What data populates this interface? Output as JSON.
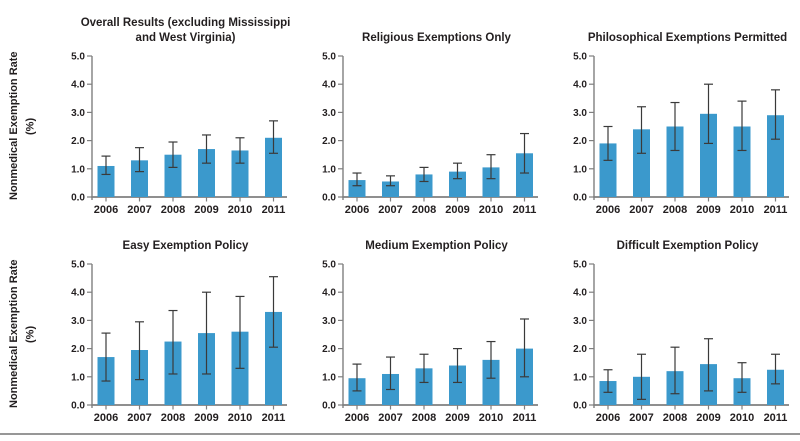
{
  "figure": {
    "y_axis_label": "Nonmedical Exemption Rate\n(%)"
  },
  "style": {
    "bar_color": "#3b99cc",
    "axis_color": "#7f7f7f",
    "error_color": "#3a3a3a",
    "text_color": "#231f20",
    "rule_color": "#979797",
    "background": "#ffffff"
  },
  "chart_data": [
    {
      "type": "bar",
      "title": "Overall Results (excluding Mississippi\nand West Virginia)",
      "categories": [
        "2006",
        "2007",
        "2008",
        "2009",
        "2010",
        "2011"
      ],
      "values": [
        1.1,
        1.3,
        1.5,
        1.7,
        1.65,
        2.1
      ],
      "error_low": [
        0.8,
        0.9,
        1.05,
        1.2,
        1.2,
        1.55
      ],
      "error_high": [
        1.45,
        1.75,
        1.95,
        2.2,
        2.1,
        2.7
      ],
      "xlabel": "",
      "ylabel": "Nonmedical Exemption Rate (%)",
      "ylim": [
        0,
        5
      ],
      "yticks": [
        "0.0",
        "1.0",
        "2.0",
        "3.0",
        "4.0",
        "5.0"
      ],
      "grid": false,
      "legend": "none"
    },
    {
      "type": "bar",
      "title": "Religious Exemptions Only",
      "categories": [
        "2006",
        "2007",
        "2008",
        "2009",
        "2010",
        "2011"
      ],
      "values": [
        0.6,
        0.55,
        0.8,
        0.9,
        1.05,
        1.55
      ],
      "error_low": [
        0.4,
        0.4,
        0.55,
        0.65,
        0.65,
        0.85
      ],
      "error_high": [
        0.85,
        0.75,
        1.05,
        1.2,
        1.5,
        2.25
      ],
      "xlabel": "",
      "ylabel": "Nonmedical Exemption Rate (%)",
      "ylim": [
        0,
        5
      ],
      "yticks": [
        "0.0",
        "1.0",
        "2.0",
        "3.0",
        "4.0",
        "5.0"
      ],
      "grid": false,
      "legend": "none"
    },
    {
      "type": "bar",
      "title": "Philosophical Exemptions Permitted",
      "categories": [
        "2006",
        "2007",
        "2008",
        "2009",
        "2010",
        "2011"
      ],
      "values": [
        1.9,
        2.4,
        2.5,
        2.95,
        2.5,
        2.9
      ],
      "error_low": [
        1.3,
        1.55,
        1.65,
        1.9,
        1.65,
        2.05
      ],
      "error_high": [
        2.5,
        3.2,
        3.35,
        4.0,
        3.4,
        3.8
      ],
      "xlabel": "",
      "ylabel": "Nonmedical Exemption Rate (%)",
      "ylim": [
        0,
        5
      ],
      "yticks": [
        "0.0",
        "1.0",
        "2.0",
        "3.0",
        "4.0",
        "5.0"
      ],
      "grid": false,
      "legend": "none"
    },
    {
      "type": "bar",
      "title": "Easy Exemption Policy",
      "categories": [
        "2006",
        "2007",
        "2008",
        "2009",
        "2010",
        "2011"
      ],
      "values": [
        1.7,
        1.95,
        2.25,
        2.55,
        2.6,
        3.3
      ],
      "error_low": [
        0.85,
        0.9,
        1.1,
        1.1,
        1.3,
        2.05
      ],
      "error_high": [
        2.55,
        2.95,
        3.35,
        4.0,
        3.85,
        4.55
      ],
      "xlabel": "",
      "ylabel": "Nonmedical Exemption Rate (%)",
      "ylim": [
        0,
        5
      ],
      "yticks": [
        "0.0",
        "1.0",
        "2.0",
        "3.0",
        "4.0",
        "5.0"
      ],
      "grid": false,
      "legend": "none"
    },
    {
      "type": "bar",
      "title": "Medium Exemption Policy",
      "categories": [
        "2006",
        "2007",
        "2008",
        "2009",
        "2010",
        "2011"
      ],
      "values": [
        0.95,
        1.1,
        1.3,
        1.4,
        1.6,
        2.0
      ],
      "error_low": [
        0.5,
        0.55,
        0.8,
        0.8,
        0.95,
        1.0
      ],
      "error_high": [
        1.45,
        1.7,
        1.8,
        2.0,
        2.25,
        3.05
      ],
      "xlabel": "",
      "ylabel": "Nonmedical Exemption Rate (%)",
      "ylim": [
        0,
        5
      ],
      "yticks": [
        "0.0",
        "1.0",
        "2.0",
        "3.0",
        "4.0",
        "5.0"
      ],
      "grid": false,
      "legend": "none"
    },
    {
      "type": "bar",
      "title": "Difficult Exemption Policy",
      "categories": [
        "2006",
        "2007",
        "2008",
        "2009",
        "2010",
        "2011"
      ],
      "values": [
        0.85,
        1.0,
        1.2,
        1.45,
        0.95,
        1.25
      ],
      "error_low": [
        0.45,
        0.2,
        0.4,
        0.5,
        0.45,
        0.75
      ],
      "error_high": [
        1.25,
        1.8,
        2.05,
        2.35,
        1.5,
        1.8
      ],
      "xlabel": "",
      "ylabel": "Nonmedical Exemption Rate (%)",
      "ylim": [
        0,
        5
      ],
      "yticks": [
        "0.0",
        "1.0",
        "2.0",
        "3.0",
        "4.0",
        "5.0"
      ],
      "grid": false,
      "legend": "none"
    }
  ]
}
